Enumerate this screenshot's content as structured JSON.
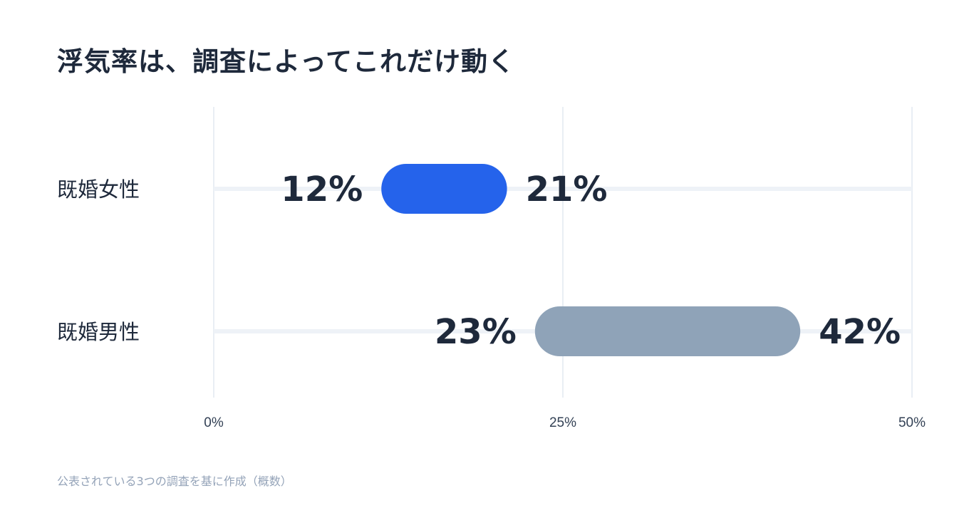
{
  "chart_data": {
    "type": "range-bar",
    "title": "浮気率は、調査によってこれだけ動く",
    "footnote": "公表されている3つの調査を基に作成（概数）",
    "xlim": [
      0,
      50
    ],
    "ticks": [
      {
        "value": 0,
        "label": "0%"
      },
      {
        "value": 25,
        "label": "25%"
      },
      {
        "value": 50,
        "label": "50%"
      }
    ],
    "grid": true,
    "series": [
      {
        "category": "既婚女性",
        "min": 12,
        "max": 21,
        "min_label": "12%",
        "max_label": "21%",
        "color": "#2563eb"
      },
      {
        "category": "既婚男性",
        "min": 23,
        "max": 42,
        "min_label": "23%",
        "max_label": "42%",
        "color": "#8fa3b8"
      }
    ]
  }
}
